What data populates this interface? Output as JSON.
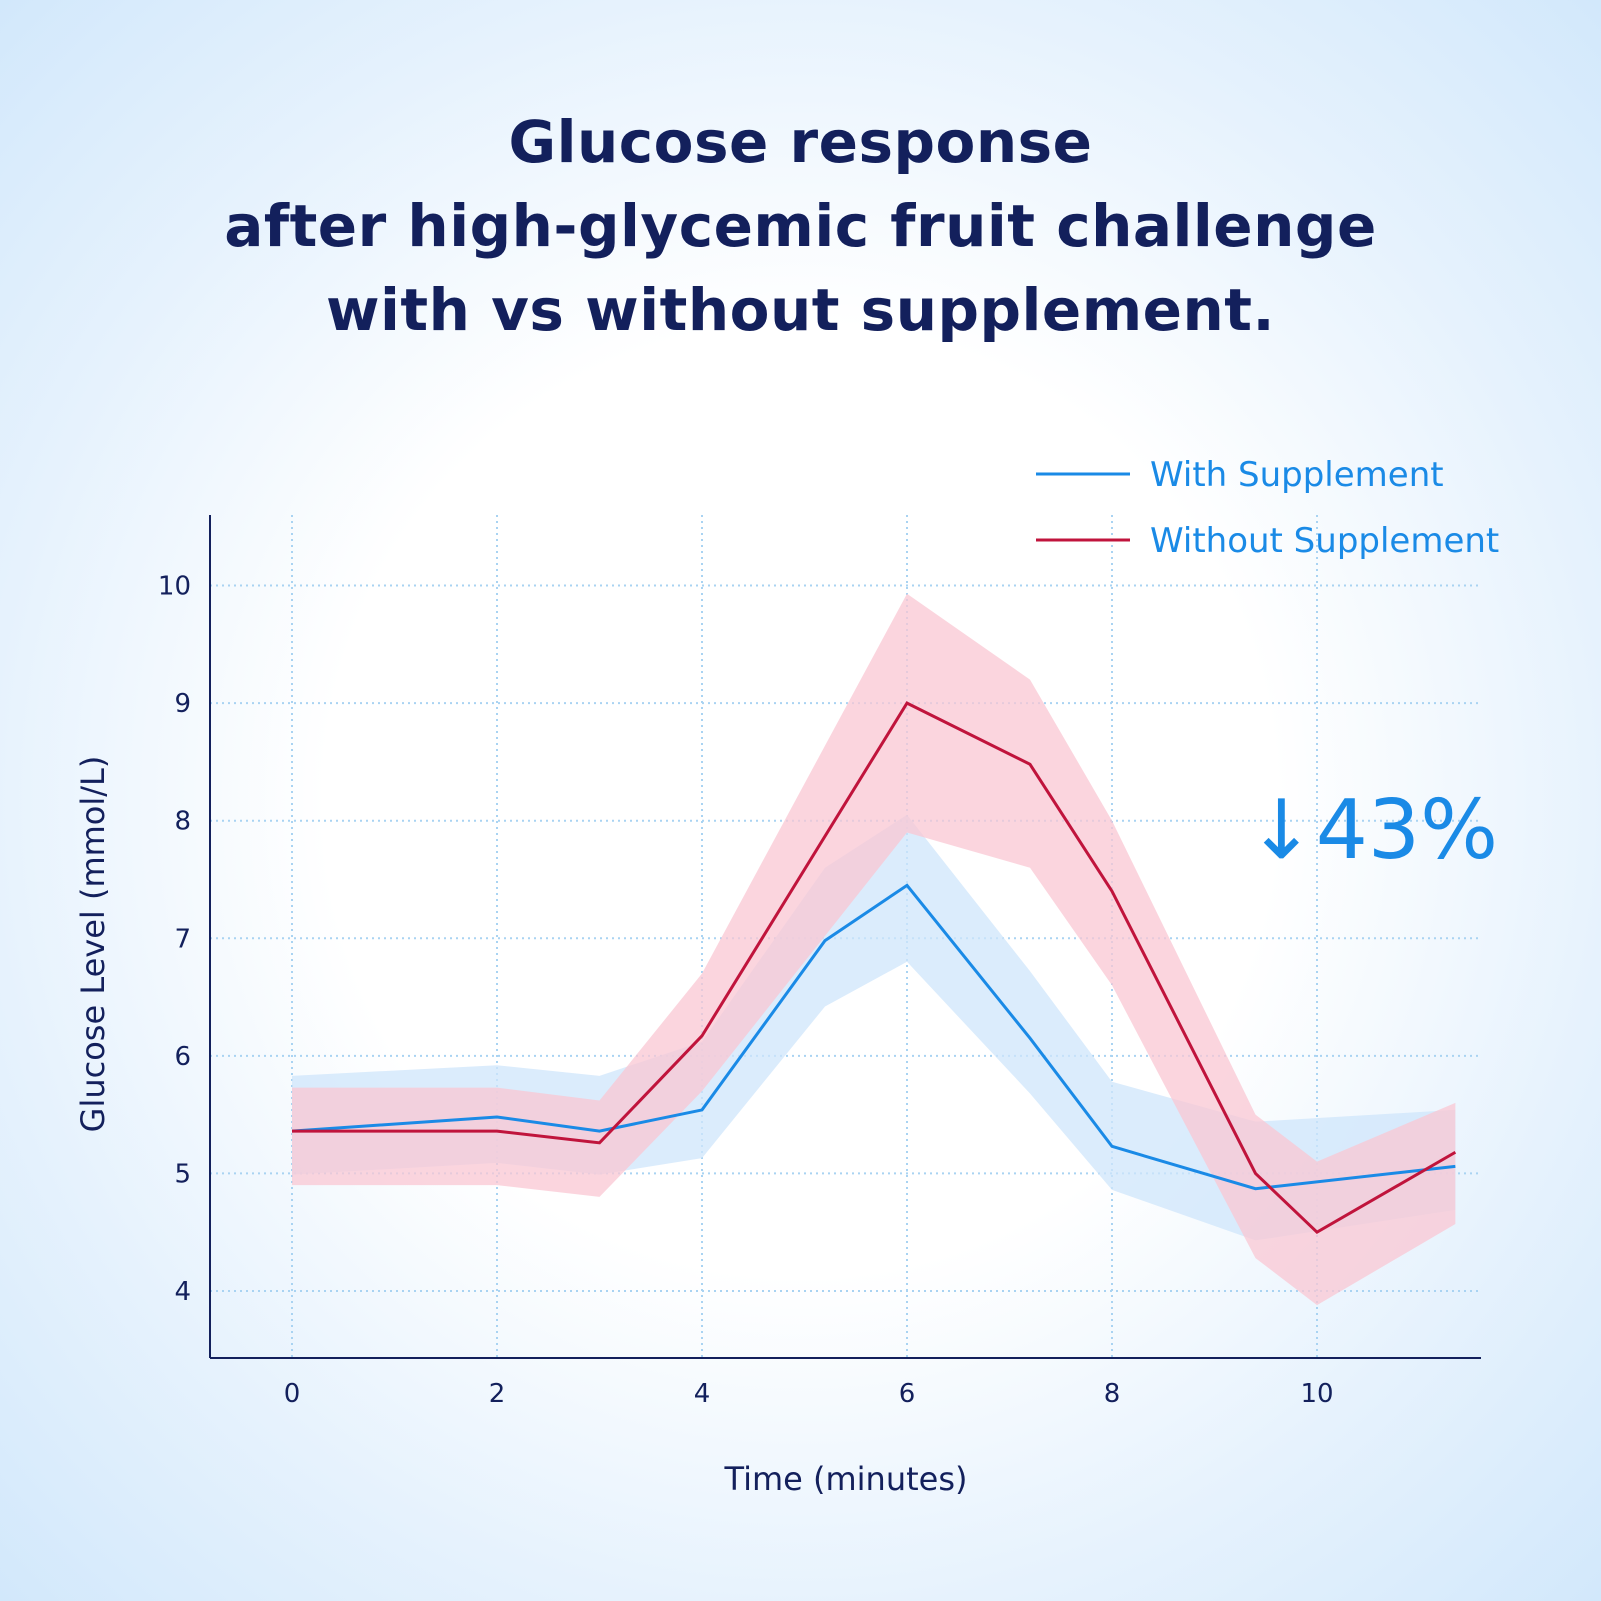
{
  "title": {
    "line1": "Glucose response",
    "line2": "after high-glycemic fruit challenge",
    "line3": "with vs without supplement."
  },
  "chart_data": {
    "type": "line",
    "title": "Glucose response after high-glycemic fruit challenge with vs without supplement.",
    "xlabel": "Time (minutes)",
    "ylabel": "Glucose Level (mmol/L)",
    "xlim": [
      -0.8,
      11.6
    ],
    "ylim": [
      3.43,
      10.6
    ],
    "xticks": [
      0,
      2,
      4,
      6,
      8,
      10
    ],
    "yticks": [
      4,
      5,
      6,
      7,
      8,
      9,
      10
    ],
    "grid": true,
    "legend_position": "top-right",
    "series": [
      {
        "name": "With Supplement",
        "color": "#1a8ae6",
        "band_color": "#cfe6fb",
        "x": [
          0,
          2,
          3,
          4,
          5.2,
          6,
          7.2,
          8,
          9.4,
          11.35
        ],
        "y": [
          5.36,
          5.48,
          5.36,
          5.54,
          6.98,
          7.45,
          6.15,
          5.23,
          4.87,
          5.06
        ],
        "upper": [
          5.83,
          5.92,
          5.83,
          6.12,
          7.6,
          8.05,
          6.72,
          5.78,
          5.44,
          5.54
        ],
        "lower": [
          4.99,
          5.09,
          4.99,
          5.13,
          6.42,
          6.8,
          5.68,
          4.86,
          4.43,
          4.69
        ]
      },
      {
        "name": "Without Supplement",
        "color": "#c0143c",
        "band_color": "#f9c7d3",
        "x": [
          0,
          2,
          3,
          4,
          6,
          7.2,
          8,
          9.4,
          10,
          11.35
        ],
        "y": [
          5.36,
          5.36,
          5.26,
          6.17,
          9.0,
          8.48,
          7.4,
          5.0,
          4.5,
          5.18
        ],
        "upper": [
          5.73,
          5.73,
          5.62,
          6.7,
          9.93,
          9.2,
          8.0,
          5.5,
          5.1,
          5.6
        ],
        "lower": [
          4.9,
          4.9,
          4.8,
          5.7,
          7.9,
          7.6,
          6.6,
          4.28,
          3.88,
          4.57
        ]
      }
    ],
    "annotations": [
      {
        "text": "↓43%",
        "color": "#1a8ae6"
      }
    ]
  }
}
